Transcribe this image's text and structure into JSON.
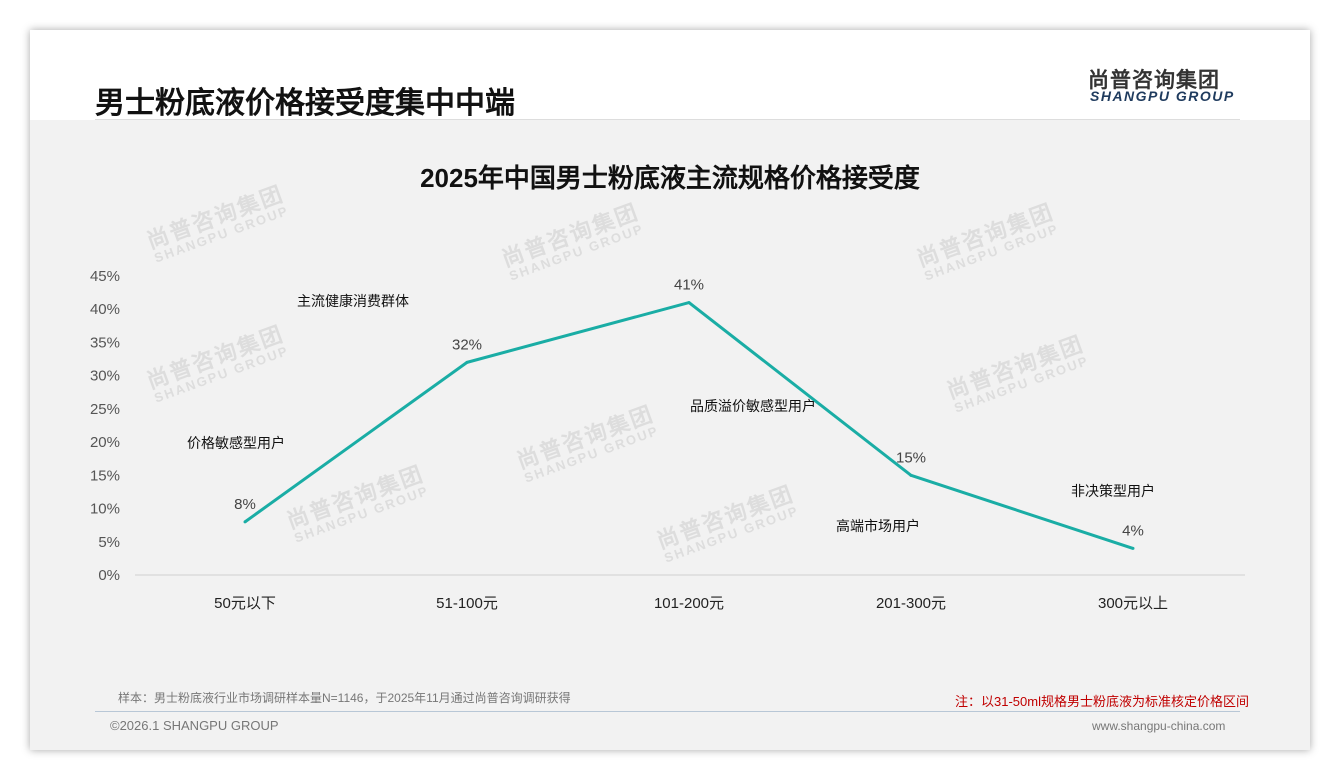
{
  "header": {
    "title": "男士粉底液价格接受度集中中端",
    "logo_cn": "尚普咨询集团",
    "logo_en": "SHANGPU GROUP"
  },
  "watermark": {
    "cn": "尚普咨询集团",
    "en": "SHANGPU GROUP"
  },
  "footer": {
    "sample": "样本：男士粉底液行业市场调研样本量N=1146，于2025年11月通过尚普咨询调研获得",
    "note": "注：以31-50ml规格男士粉底液为标准核定价格区间",
    "copyright": "©2026.1 SHANGPU GROUP",
    "website": "www.shangpu-china.com"
  },
  "chart_data": {
    "type": "line",
    "title": "2025年中国男士粉底液主流规格价格接受度",
    "categories": [
      "50元以下",
      "51-100元",
      "101-200元",
      "201-300元",
      "300元以上"
    ],
    "values": [
      8,
      32,
      41,
      15,
      4
    ],
    "value_labels": [
      "8%",
      "32%",
      "41%",
      "15%",
      "4%"
    ],
    "ylim": [
      0,
      45
    ],
    "yticks": [
      "0%",
      "5%",
      "10%",
      "15%",
      "20%",
      "25%",
      "30%",
      "35%",
      "40%",
      "45%"
    ],
    "annotations": [
      "价格敏感型用户",
      "主流健康消费群体",
      "品质溢价敏感型用户",
      "高端市场用户",
      "非决策型用户"
    ],
    "series_color": "#1aada5",
    "grid": false,
    "legend": "none"
  }
}
